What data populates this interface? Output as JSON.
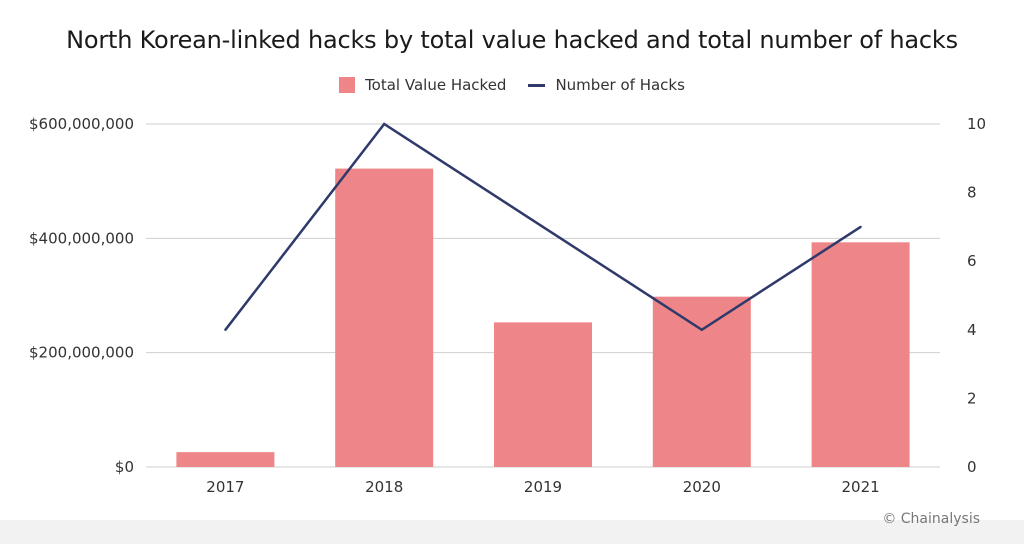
{
  "chart_data": {
    "type": "bar",
    "title": "North Korean-linked hacks by total value hacked and total number of hacks",
    "categories": [
      "2017",
      "2018",
      "2019",
      "2020",
      "2021"
    ],
    "series": [
      {
        "name": "Total Value Hacked",
        "kind": "bar",
        "axis": "left",
        "color": "#ee8689",
        "values": [
          26000000,
          522000000,
          253000000,
          298000000,
          393000000
        ]
      },
      {
        "name": "Number of Hacks",
        "kind": "line",
        "axis": "right",
        "color": "#2f3a6b",
        "values": [
          4,
          10,
          7,
          4,
          7
        ]
      }
    ],
    "y_left": {
      "ylim": [
        0,
        600000000
      ],
      "ticks": [
        0,
        200000000,
        400000000,
        600000000
      ],
      "tick_labels": [
        "$0",
        "$200,000,000",
        "$400,000,000",
        "$600,000,000"
      ]
    },
    "y_right": {
      "ylim": [
        0,
        10
      ],
      "ticks": [
        0,
        2,
        4,
        6,
        8,
        10
      ],
      "tick_labels": [
        "0",
        "2",
        "4",
        "6",
        "8",
        "10"
      ]
    },
    "grid": true,
    "legend_position": "top-center"
  },
  "credit": "© Chainalysis"
}
